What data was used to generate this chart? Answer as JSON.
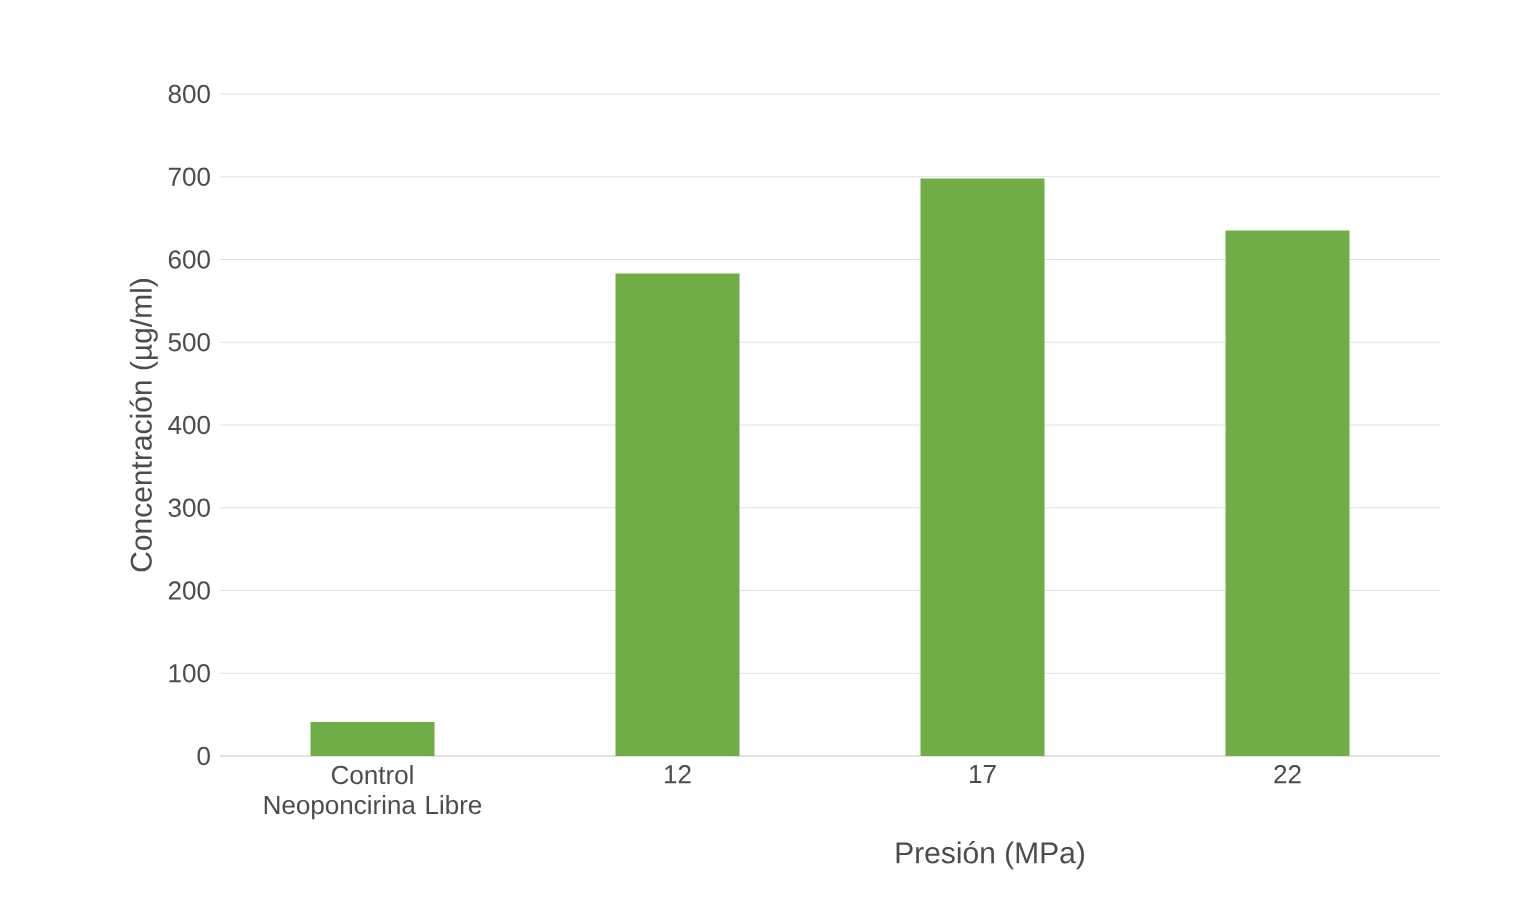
{
  "chart_data": {
    "type": "bar",
    "categories": [
      "Control Neoponcirina Libre",
      "12",
      "17",
      "22"
    ],
    "values": [
      41,
      583,
      698,
      635
    ],
    "color": "#70ad47",
    "xlabel": "Presión (MPa)",
    "ylabel": "Concentración (µg/ml)",
    "ylim": [
      0,
      800
    ],
    "yticks": [
      0,
      100,
      200,
      300,
      400,
      500,
      600,
      700,
      800
    ],
    "grid": "y"
  }
}
